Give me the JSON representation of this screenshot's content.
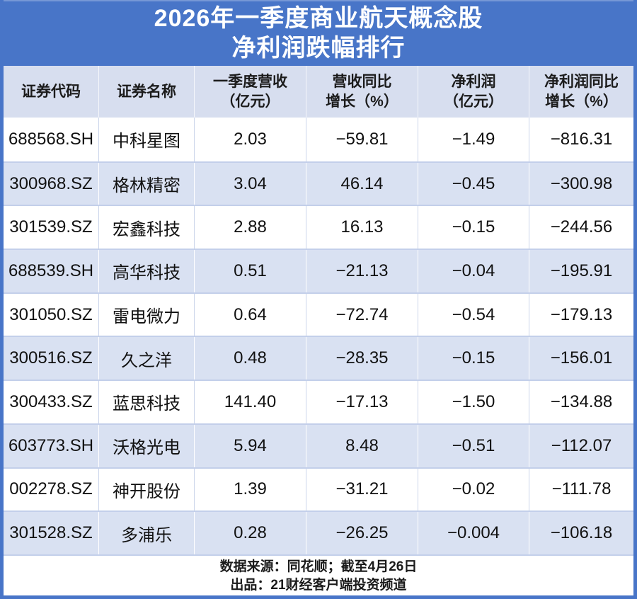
{
  "chart_data": {
    "type": "table",
    "title": "2026年一季度商业航天概念股 净利润跌幅排行",
    "title_lines": [
      "2026年一季度商业航天概念股",
      "净利润跌幅排行"
    ],
    "columns": [
      {
        "key": "stock_code",
        "lines": [
          "证券代码"
        ]
      },
      {
        "key": "stock_name",
        "lines": [
          "证券名称"
        ]
      },
      {
        "key": "q1_revenue",
        "lines": [
          "一季度营收",
          "（亿元）"
        ]
      },
      {
        "key": "revenue_yoy",
        "lines": [
          "营收同比",
          "增长（%）"
        ]
      },
      {
        "key": "net_profit",
        "lines": [
          "净利润",
          "（亿元）"
        ]
      },
      {
        "key": "net_profit_yoy",
        "lines": [
          "净利润同比",
          "增长（%）"
        ]
      }
    ],
    "rows": [
      [
        "688568.SH",
        "中科星图",
        "2.03",
        "−59.81",
        "−1.49",
        "−816.31"
      ],
      [
        "300968.SZ",
        "格林精密",
        "3.04",
        "46.14",
        "−0.45",
        "−300.98"
      ],
      [
        "301539.SZ",
        "宏鑫科技",
        "2.88",
        "16.13",
        "−0.15",
        "−244.56"
      ],
      [
        "688539.SH",
        "高华科技",
        "0.51",
        "−21.13",
        "−0.04",
        "−195.91"
      ],
      [
        "301050.SZ",
        "雷电微力",
        "0.64",
        "−72.74",
        "−0.54",
        "−179.13"
      ],
      [
        "300516.SZ",
        "久之洋",
        "0.48",
        "−28.35",
        "−0.15",
        "−156.01"
      ],
      [
        "300433.SZ",
        "蓝思科技",
        "141.40",
        "−17.13",
        "−1.50",
        "−134.88"
      ],
      [
        "603773.SH",
        "沃格光电",
        "5.94",
        "8.48",
        "−0.51",
        "−112.07"
      ],
      [
        "002278.SZ",
        "神开股份",
        "1.39",
        "−31.21",
        "−0.02",
        "−111.78"
      ],
      [
        "301528.SZ",
        "多浦乐",
        "0.28",
        "−26.25",
        "−0.004",
        "−106.18"
      ]
    ],
    "source_note": "数据来源：同花顺；截至4月26日",
    "producer_note": "出品：21财经客户端投资频道"
  },
  "colors": {
    "accent_blue": "#4875C8",
    "header_bg": "#D7DEEF",
    "row_alt_bg": "#D9E1F2",
    "text_dark": "#1b1b1b",
    "title_text": "#ffffff"
  }
}
